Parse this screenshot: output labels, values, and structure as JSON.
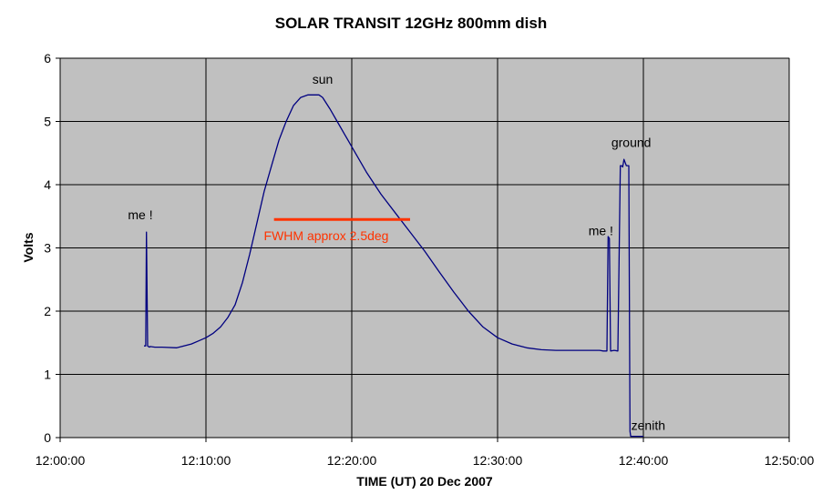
{
  "chart_data": {
    "type": "line",
    "title": "SOLAR TRANSIT  12GHz  800mm dish",
    "xlabel": "TIME (UT) 20 Dec 2007",
    "ylabel": "Volts",
    "xlim_minutes": [
      0,
      50
    ],
    "ylim": [
      0,
      6
    ],
    "x_ticks": [
      "12:00:00",
      "12:10:00",
      "12:20:00",
      "12:30:00",
      "12:40:00",
      "12:50:00"
    ],
    "y_ticks": [
      0,
      1,
      2,
      3,
      4,
      5,
      6
    ],
    "grid": true,
    "legend": "none",
    "colors": {
      "plot_background": "#c0c0c0",
      "series": "#000080",
      "fwhm_line": "#ff3300",
      "fwhm_text": "#ff3300",
      "grid": "#000000"
    },
    "series": [
      {
        "x": [
          "12:05:45",
          "12:05:52",
          "12:05:55",
          "12:06:00",
          "12:06:03",
          "12:06:08",
          "12:06:10",
          "12:06:30",
          "12:07:00",
          "12:08:00",
          "12:09:00",
          "12:09:30",
          "12:10:00",
          "12:10:30",
          "12:11:00",
          "12:11:30",
          "12:12:00",
          "12:12:30",
          "12:13:00",
          "12:13:30",
          "12:14:00",
          "12:14:30",
          "12:15:00",
          "12:15:30",
          "12:16:00",
          "12:16:30",
          "12:17:00",
          "12:17:30",
          "12:17:45",
          "12:18:00",
          "12:18:30",
          "12:19:00",
          "12:19:30",
          "12:20:00",
          "12:21:00",
          "12:22:00",
          "12:23:00",
          "12:24:00",
          "12:25:00",
          "12:26:00",
          "12:27:00",
          "12:28:00",
          "12:29:00",
          "12:30:00",
          "12:31:00",
          "12:32:00",
          "12:33:00",
          "12:34:00",
          "12:35:00",
          "12:36:00",
          "12:37:00",
          "12:37:15",
          "12:37:20",
          "12:37:30",
          "12:37:35",
          "12:37:40",
          "12:37:45",
          "12:38:00",
          "12:38:15",
          "12:38:25",
          "12:38:30",
          "12:38:35",
          "12:38:40",
          "12:38:50",
          "12:39:00",
          "12:39:05",
          "12:39:08",
          "12:39:12",
          "12:39:20",
          "12:39:30",
          "12:39:40",
          "12:40:00"
        ],
        "y": [
          1.45,
          1.45,
          3.25,
          1.45,
          1.44,
          1.43,
          1.44,
          1.43,
          1.43,
          1.42,
          1.48,
          1.53,
          1.58,
          1.65,
          1.75,
          1.9,
          2.1,
          2.45,
          2.9,
          3.4,
          3.9,
          4.3,
          4.7,
          5.0,
          5.25,
          5.38,
          5.42,
          5.42,
          5.42,
          5.38,
          5.2,
          5.0,
          4.8,
          4.6,
          4.2,
          3.85,
          3.55,
          3.25,
          2.95,
          2.62,
          2.3,
          2.0,
          1.75,
          1.58,
          1.48,
          1.42,
          1.39,
          1.38,
          1.38,
          1.38,
          1.38,
          1.37,
          1.37,
          1.37,
          3.18,
          3.15,
          1.37,
          1.38,
          1.37,
          4.3,
          4.3,
          4.28,
          4.4,
          4.3,
          4.3,
          0.1,
          0.02,
          0.02,
          0.02,
          0.02,
          0.02,
          0.02
        ]
      }
    ],
    "annotations": [
      {
        "text": "sun",
        "x": "12:18:00",
        "y": 5.6
      },
      {
        "text": "me !",
        "x": "12:05:30",
        "y": 3.45
      },
      {
        "text": "me !",
        "x": "12:37:05",
        "y": 3.2
      },
      {
        "text": "ground",
        "x": "12:39:10",
        "y": 4.6
      },
      {
        "text": "zenith",
        "x": "12:40:20",
        "y": 0.12
      },
      {
        "text": "FWHM approx 2.5deg",
        "x": "12:18:15",
        "y": 3.12,
        "color": "#ff3300"
      }
    ],
    "fwhm_marker": {
      "x_start": "12:14:40",
      "x_end": "12:24:00",
      "y": 3.45
    }
  }
}
